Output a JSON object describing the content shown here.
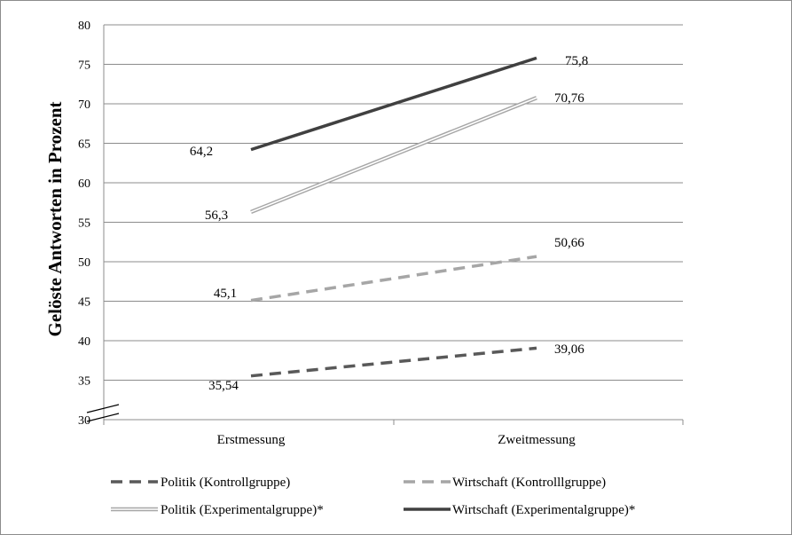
{
  "chart_data": {
    "type": "line",
    "ylabel": "Gelöste Antworten in Prozent",
    "xlabel": "",
    "categories": [
      "Erstmessung",
      "Zweitmessung"
    ],
    "ylim": [
      30,
      80
    ],
    "yticks": [
      "30",
      "35",
      "40",
      "45",
      "50",
      "55",
      "60",
      "65",
      "70",
      "75",
      "80"
    ],
    "grid": true,
    "axis_break": true,
    "legend_position": "bottom",
    "series": [
      {
        "name": "Politik (Kontrollgruppe)",
        "values": [
          35.54,
          39.06
        ],
        "labels": [
          "35,54",
          "39,06"
        ],
        "style": "dashed",
        "color": "#595959"
      },
      {
        "name": "Wirtschaft (Kontrolllgruppe)",
        "values": [
          45.1,
          50.66
        ],
        "labels": [
          "45,1",
          "50,66"
        ],
        "style": "dashed",
        "color": "#a6a6a6"
      },
      {
        "name": "Politik  (Experimentalgruppe)*",
        "values": [
          56.3,
          70.76
        ],
        "labels": [
          "56,3",
          "70,76"
        ],
        "style": "double",
        "color": "#a6a6a6"
      },
      {
        "name": "Wirtschaft (Experimentalgruppe)*",
        "values": [
          64.2,
          75.8
        ],
        "labels": [
          "64,2",
          "75,8"
        ],
        "style": "solid",
        "color": "#404040"
      }
    ]
  }
}
